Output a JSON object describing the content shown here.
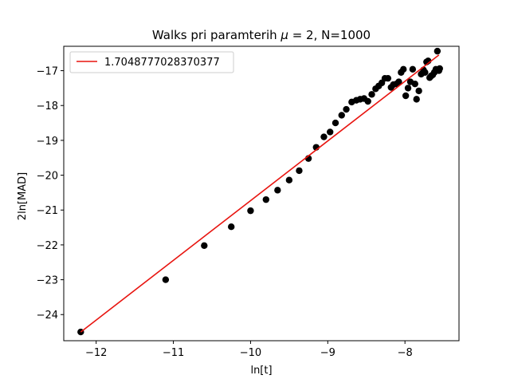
{
  "chart_data": {
    "type": "scatter",
    "title": "Walks pri paramterih μ = 2, N=1000",
    "title_parts": {
      "prefix": "Walks pri paramterih ",
      "mu_symbol": "μ",
      "suffix": " = 2, N=1000"
    },
    "xlabel": "ln[t]",
    "ylabel": "2ln[MAD]",
    "xlim": [
      -12.42,
      -7.3
    ],
    "ylim": [
      -24.75,
      -16.3
    ],
    "xticks": [
      -12,
      -11,
      -10,
      -9,
      -8
    ],
    "yticks": [
      -24,
      -23,
      -22,
      -21,
      -20,
      -19,
      -18,
      -17
    ],
    "xtick_labels": [
      "−12",
      "−11",
      "−10",
      "−9",
      "−8"
    ],
    "ytick_labels": [
      "−24",
      "−23",
      "−22",
      "−21",
      "−20",
      "−19",
      "−18",
      "−17"
    ],
    "grid": false,
    "legend": {
      "position": "top-left",
      "entries": [
        "1.7048777028370377"
      ]
    },
    "colors": {
      "points": "#000000",
      "fit_line": "#e8140f",
      "legend_border": "#cccccc"
    },
    "series": [
      {
        "kind": "points",
        "x": [
          -12.2,
          -11.1,
          -10.6,
          -10.25,
          -10.0,
          -9.8,
          -9.65,
          -9.5,
          -9.37,
          -9.25,
          -9.15,
          -9.05,
          -8.97,
          -8.9,
          -8.82,
          -8.76,
          -8.69,
          -8.63,
          -8.58,
          -8.53,
          -8.48,
          -8.43,
          -8.38,
          -8.34,
          -8.3,
          -8.26,
          -8.22,
          -8.18,
          -8.15,
          -8.11,
          -8.08,
          -8.05,
          -8.02,
          -7.99,
          -7.96,
          -7.93,
          -7.9,
          -7.87,
          -7.85,
          -7.82,
          -7.79,
          -7.76,
          -7.74,
          -7.72,
          -7.7,
          -7.68,
          -7.66,
          -7.64,
          -7.62,
          -7.6,
          -7.58,
          -7.56,
          -7.55
        ],
        "y": [
          -24.5,
          -23.0,
          -22.02,
          -21.48,
          -21.02,
          -20.7,
          -20.43,
          -20.14,
          -19.87,
          -19.52,
          -19.2,
          -18.9,
          -18.76,
          -18.5,
          -18.28,
          -18.11,
          -17.9,
          -17.85,
          -17.82,
          -17.8,
          -17.88,
          -17.68,
          -17.52,
          -17.44,
          -17.35,
          -17.22,
          -17.22,
          -17.48,
          -17.4,
          -17.38,
          -17.32,
          -17.05,
          -16.96,
          -17.72,
          -17.5,
          -17.32,
          -16.96,
          -17.38,
          -17.82,
          -17.58,
          -17.1,
          -16.98,
          -17.05,
          -16.75,
          -16.72,
          -17.2,
          -17.15,
          -17.12,
          -17.05,
          -16.96,
          -16.44,
          -17.0,
          -16.94
        ]
      },
      {
        "kind": "line",
        "name": "1.7048777028370377",
        "x": [
          -12.2,
          -7.56
        ],
        "y": [
          -24.5,
          -16.55
        ]
      }
    ]
  }
}
